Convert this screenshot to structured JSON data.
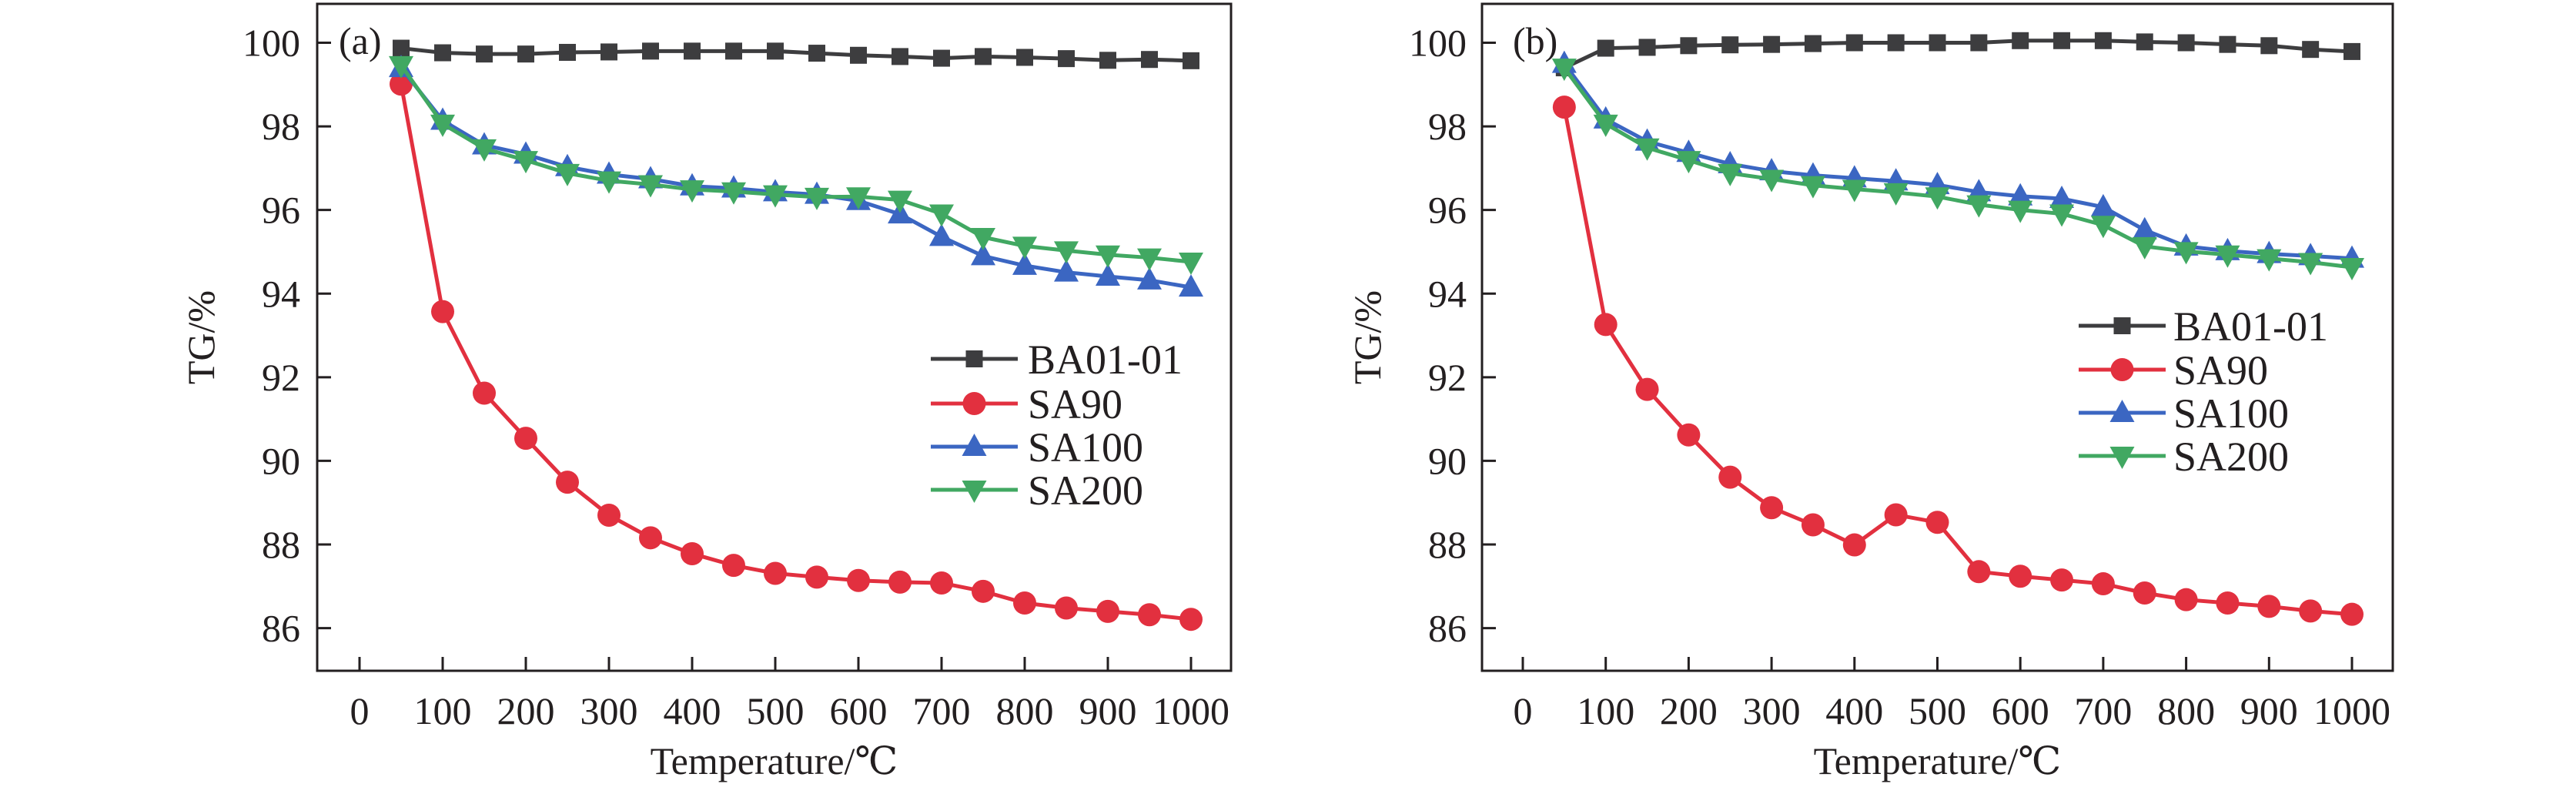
{
  "chart_data": [
    {
      "type": "line",
      "panel_label": "(a)",
      "xlabel": "Temperature/℃",
      "ylabel": "TG/%",
      "xlim": [
        -30,
        1030
      ],
      "ylim": [
        84.8,
        101.3
      ],
      "xticks": [
        0,
        100,
        200,
        300,
        400,
        500,
        600,
        700,
        800,
        900,
        1000
      ],
      "yticks": [
        86,
        88,
        90,
        92,
        94,
        96,
        98,
        100
      ],
      "grid": false,
      "legend_position": "center-right",
      "x": [
        50,
        100,
        150,
        200,
        250,
        300,
        350,
        400,
        450,
        500,
        550,
        600,
        650,
        700,
        750,
        800,
        850,
        900,
        950,
        1000
      ],
      "series": [
        {
          "name": "BA01-01",
          "color": "#3d3d3f",
          "marker": "square",
          "values": [
            99.87,
            99.76,
            99.73,
            99.73,
            99.77,
            99.78,
            99.8,
            99.8,
            99.8,
            99.8,
            99.75,
            99.7,
            99.67,
            99.63,
            99.67,
            99.65,
            99.62,
            99.58,
            99.6,
            99.57
          ]
        },
        {
          "name": "SA90",
          "color": "#e2303f",
          "marker": "circle",
          "values": [
            99.01,
            93.57,
            91.62,
            90.54,
            89.49,
            88.7,
            88.16,
            87.78,
            87.5,
            87.31,
            87.22,
            87.14,
            87.1,
            87.08,
            86.88,
            86.6,
            86.48,
            86.4,
            86.32,
            86.21
          ]
        },
        {
          "name": "SA100",
          "color": "#3b66c2",
          "marker": "triangle-up",
          "values": [
            99.4,
            98.14,
            97.55,
            97.33,
            97.03,
            96.85,
            96.74,
            96.57,
            96.52,
            96.43,
            96.37,
            96.22,
            95.9,
            95.36,
            94.9,
            94.67,
            94.51,
            94.41,
            94.32,
            94.15
          ]
        },
        {
          "name": "SA200",
          "color": "#41a862",
          "marker": "triangle-down",
          "values": [
            99.46,
            98.06,
            97.47,
            97.19,
            96.88,
            96.7,
            96.61,
            96.49,
            96.44,
            96.37,
            96.31,
            96.32,
            96.24,
            95.91,
            95.35,
            95.14,
            95.03,
            94.93,
            94.86,
            94.76
          ]
        }
      ]
    },
    {
      "type": "line",
      "panel_label": "(b)",
      "xlabel": "Temperature/℃",
      "ylabel": "TG/%",
      "xlim": [
        -30,
        1030
      ],
      "ylim": [
        84.8,
        101.3
      ],
      "xticks": [
        0,
        100,
        200,
        300,
        400,
        500,
        600,
        700,
        800,
        900,
        1000
      ],
      "yticks": [
        86,
        88,
        90,
        92,
        94,
        96,
        98,
        100
      ],
      "grid": false,
      "legend_position": "center-right",
      "x": [
        50,
        100,
        150,
        200,
        250,
        300,
        350,
        400,
        450,
        500,
        550,
        600,
        650,
        700,
        750,
        800,
        850,
        900,
        950,
        1000
      ],
      "series": [
        {
          "name": "BA01-01",
          "color": "#3d3d3f",
          "marker": "square",
          "values": [
            99.4,
            99.87,
            99.89,
            99.93,
            99.95,
            99.96,
            99.98,
            100.0,
            100.0,
            100.0,
            100.0,
            100.05,
            100.05,
            100.05,
            100.02,
            100.0,
            99.96,
            99.93,
            99.84,
            99.79
          ]
        },
        {
          "name": "SA90",
          "color": "#e2303f",
          "marker": "circle",
          "values": [
            98.46,
            93.26,
            91.71,
            90.62,
            89.61,
            88.88,
            88.47,
            87.99,
            88.71,
            88.53,
            87.35,
            87.24,
            87.15,
            87.06,
            86.84,
            86.68,
            86.6,
            86.52,
            86.41,
            86.33
          ]
        },
        {
          "name": "SA100",
          "color": "#3b66c2",
          "marker": "triangle-up",
          "values": [
            99.5,
            98.17,
            97.64,
            97.37,
            97.1,
            96.93,
            96.83,
            96.76,
            96.69,
            96.6,
            96.43,
            96.33,
            96.27,
            96.07,
            95.52,
            95.13,
            95.02,
            94.95,
            94.9,
            94.84
          ]
        },
        {
          "name": "SA200",
          "color": "#41a862",
          "marker": "triangle-down",
          "values": [
            99.4,
            98.06,
            97.49,
            97.19,
            96.88,
            96.74,
            96.59,
            96.5,
            96.42,
            96.32,
            96.13,
            96.0,
            95.91,
            95.64,
            95.13,
            95.01,
            94.93,
            94.84,
            94.75,
            94.63
          ]
        }
      ]
    }
  ]
}
